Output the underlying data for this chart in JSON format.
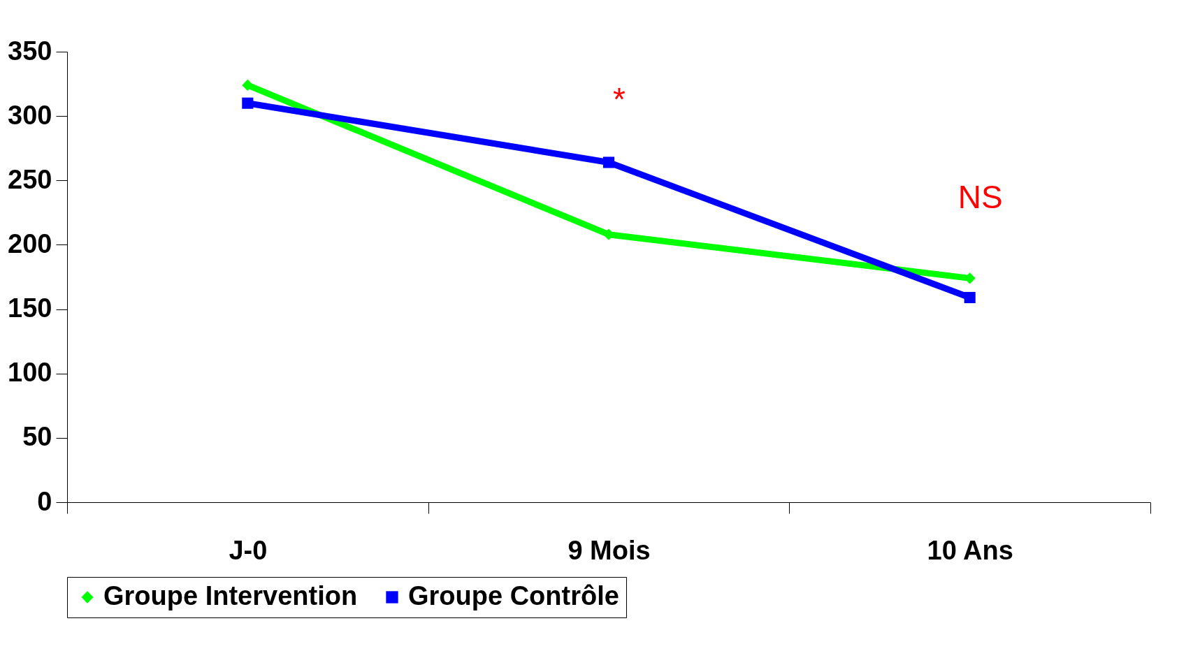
{
  "chart_data": {
    "type": "line",
    "categories": [
      "J-0",
      "9 Mois",
      "10 Ans"
    ],
    "series": [
      {
        "name": "Groupe Intervention",
        "color": "#00ff00",
        "marker": "diamond",
        "values": [
          324,
          208,
          174
        ]
      },
      {
        "name": "Groupe Contrôle",
        "color": "#0000ff",
        "marker": "square",
        "values": [
          310,
          264,
          159
        ]
      }
    ],
    "ylim": [
      0,
      350
    ],
    "yticks": [
      0,
      50,
      100,
      150,
      200,
      250,
      300,
      350
    ],
    "grid": false,
    "legend": "bottom",
    "annotations": [
      "*",
      "NS"
    ]
  }
}
